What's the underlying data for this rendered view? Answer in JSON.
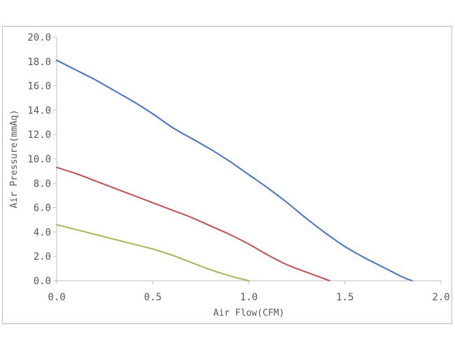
{
  "chart_data": {
    "type": "line",
    "title": "",
    "xlabel": "Air Flow(CFM)",
    "ylabel": "Air Pressure(mmAq)",
    "xlim": [
      0,
      2
    ],
    "ylim": [
      0,
      20
    ],
    "x_ticks": [
      "0.0",
      "0.5",
      "1.0",
      "1.5",
      "2.0"
    ],
    "y_ticks": [
      "0.0",
      "2.0",
      "4.0",
      "6.0",
      "8.0",
      "10.0",
      "12.0",
      "14.0",
      "16.0",
      "18.0",
      "20.0"
    ],
    "grid": false,
    "legend": "none",
    "series": [
      {
        "color": "#4472c4",
        "x": [
          0,
          0.1,
          0.2,
          0.3,
          0.4,
          0.5,
          0.6,
          0.7,
          0.8,
          0.9,
          1.0,
          1.1,
          1.2,
          1.3,
          1.4,
          1.5,
          1.6,
          1.7,
          1.8,
          1.85
        ],
        "y": [
          18.1,
          17.3,
          16.5,
          15.6,
          14.7,
          13.7,
          12.6,
          11.7,
          10.8,
          9.8,
          8.7,
          7.6,
          6.4,
          5.1,
          3.9,
          2.8,
          1.9,
          1.1,
          0.3,
          0
        ]
      },
      {
        "color": "#c0504d",
        "x": [
          0,
          0.1,
          0.2,
          0.3,
          0.4,
          0.5,
          0.6,
          0.7,
          0.8,
          0.9,
          1.0,
          1.1,
          1.2,
          1.3,
          1.42
        ],
        "y": [
          9.3,
          8.8,
          8.2,
          7.6,
          7.0,
          6.4,
          5.8,
          5.2,
          4.5,
          3.8,
          3.0,
          2.1,
          1.3,
          0.7,
          0
        ]
      },
      {
        "color": "#9bbb59",
        "x": [
          0,
          0.1,
          0.2,
          0.3,
          0.4,
          0.5,
          0.6,
          0.7,
          0.8,
          0.9,
          1.0
        ],
        "y": [
          4.6,
          4.2,
          3.8,
          3.4,
          3.0,
          2.6,
          2.1,
          1.5,
          0.9,
          0.4,
          0
        ]
      }
    ]
  }
}
